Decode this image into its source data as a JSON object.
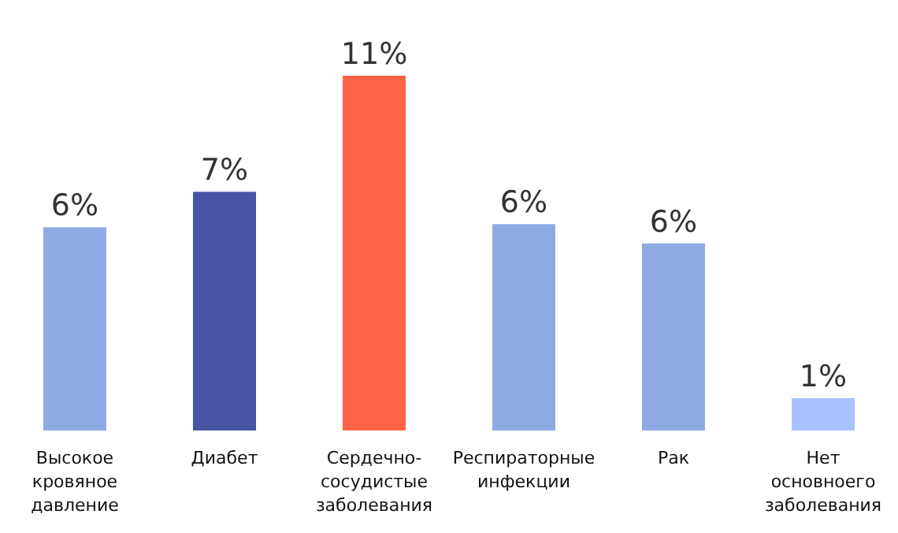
{
  "chart_data": {
    "type": "bar",
    "categories": [
      "Высокое\nкровяное\nдавление",
      "Диабет",
      "Сердечно-\nсосудистые\nзаболевания",
      "Респираторные\nинфекции",
      "Рак",
      "Нет\nосновноего\nзаболевания"
    ],
    "values": [
      6.3,
      7.4,
      11,
      6.4,
      5.8,
      1
    ],
    "value_labels": [
      "6%",
      "7%",
      "11%",
      "6%",
      "6%",
      "1%"
    ],
    "colors": [
      "#8eaae3",
      "#4656a5",
      "#ff6347",
      "#8eaae3",
      "#8eaae3",
      "#a9c1ff"
    ]
  }
}
